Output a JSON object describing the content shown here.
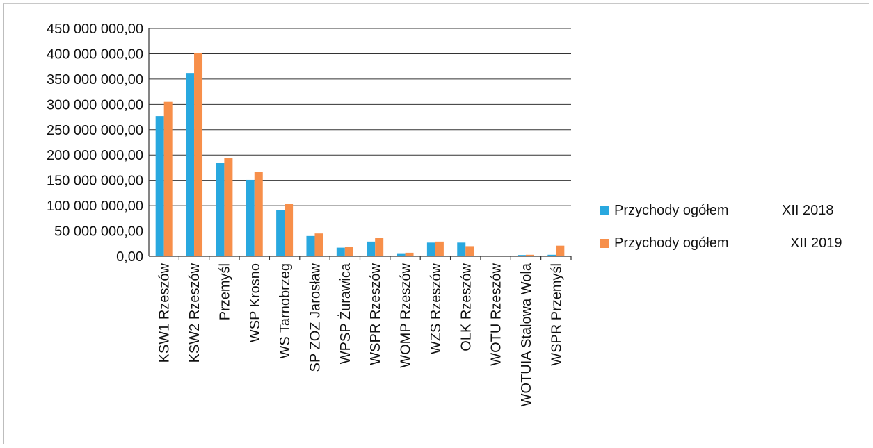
{
  "chart_data": {
    "type": "bar",
    "categories": [
      "KSW1 Rzeszów",
      "KSW2 Rzeszów",
      "Przemyśl",
      "WSP Krosno",
      "WS Tarnobrzeg",
      "SP ZOZ Jarosław",
      "WPSP Żurawica",
      "WSPR Rzeszów",
      "WOMP Rzeszów",
      "WZS Rzeszów",
      "OLK Rzeszów",
      "WOTU Rzeszów",
      "WOTUIA Stalowa Wola",
      "WSPR Przemyśl"
    ],
    "series": [
      {
        "name": "Przychody ogółem",
        "period": "XII 2018",
        "color": "#29a8df",
        "values": [
          277000000,
          362000000,
          184000000,
          151000000,
          91000000,
          40000000,
          17000000,
          29000000,
          6000000,
          27000000,
          27000000,
          1000000,
          2500000,
          3000000
        ]
      },
      {
        "name": "Przychody ogółem",
        "period": "XII 2019",
        "color": "#f78f4a",
        "values": [
          305000000,
          402000000,
          194000000,
          166000000,
          104000000,
          45000000,
          19000000,
          37000000,
          7000000,
          29000000,
          20000000,
          1000000,
          3000000,
          21000000
        ]
      }
    ],
    "yticks": [
      "0,00",
      "50 000 000,00",
      "100 000 000,00",
      "150 000 000,00",
      "200 000 000,00",
      "250 000 000,00",
      "300 000 000,00",
      "350 000 000,00",
      "400 000 000,00",
      "450 000 000,00"
    ],
    "ylim": [
      0,
      450000000
    ],
    "ystep": 50000000,
    "grid": true,
    "legend_position": "right"
  }
}
